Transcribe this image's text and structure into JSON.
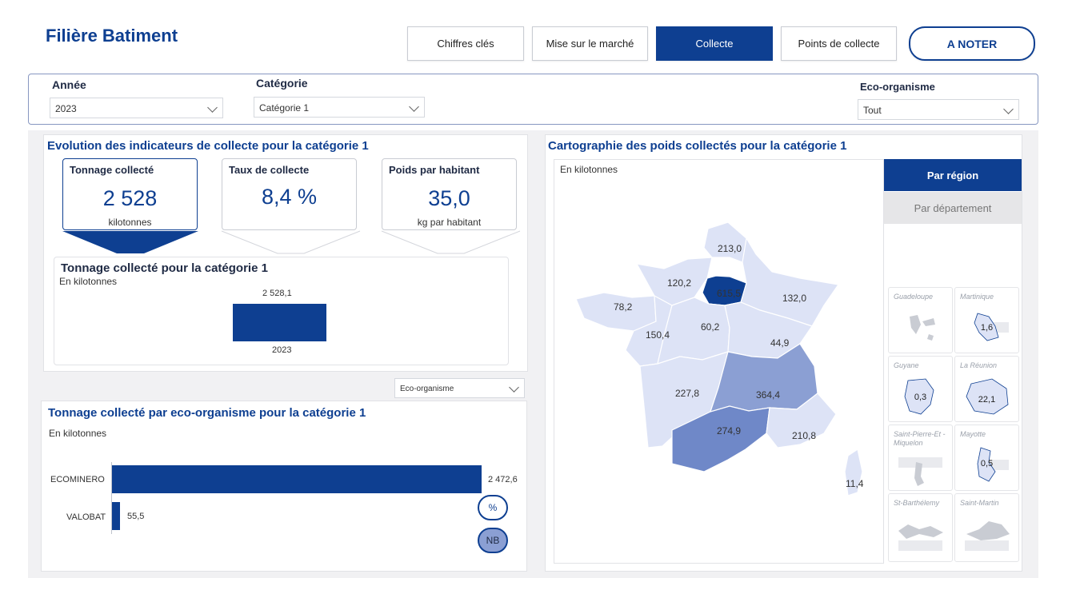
{
  "header": {
    "title": "Filière Batiment"
  },
  "nav": {
    "chiffres": "Chiffres clés",
    "marche": "Mise sur le marché",
    "collecte": "Collecte",
    "points": "Points de collecte",
    "noter": "A NOTER"
  },
  "filters": {
    "annee": {
      "label": "Année",
      "value": "2023"
    },
    "categorie": {
      "label": "Catégorie",
      "value": "Catégorie 1"
    },
    "eco": {
      "label": "Eco-organisme",
      "value": "Tout"
    }
  },
  "evolution": {
    "title": "Evolution des indicateurs de collecte pour la catégorie 1",
    "kpis": [
      {
        "title": "Tonnage collecté",
        "value": "2 528",
        "unit": "kilotonnes"
      },
      {
        "title": "Taux de collecte",
        "value": "8,4 %",
        "unit": ""
      },
      {
        "title": "Poids par habitant",
        "value": "35,0",
        "unit": "kg par habitant"
      }
    ]
  },
  "tonnage_chart": {
    "title": "Tonnage collecté pour la catégorie 1",
    "subtitle": "En kilotonnes",
    "value_label": "2 528,1",
    "category": "2023"
  },
  "eco_filter": {
    "value": "Eco-organisme"
  },
  "eco_chart": {
    "title": "Tonnage collecté par eco-organisme pour la catégorie 1",
    "subtitle": "En kilotonnes",
    "bars": [
      {
        "name": "ECOMINERO",
        "label": "2 472,6"
      },
      {
        "name": "VALOBAT",
        "label": "55,5"
      }
    ],
    "toggle_pct": "%",
    "toggle_nb": "NB"
  },
  "map": {
    "title": "Cartographie des poids collectés pour la catégorie 1",
    "subtitle": "En kilotonnes",
    "toggle_region": "Par région",
    "toggle_dept": "Par département",
    "regions": {
      "hdf": "213,0",
      "normandie": "120,2",
      "idf": "615,5",
      "grandest": "132,0",
      "bretagne": "78,2",
      "pdl": "150,4",
      "cvl": "60,2",
      "bfc": "44,9",
      "naq": "227,8",
      "ara": "364,4",
      "occ": "274,9",
      "paca": "210,8",
      "corse": "11,4"
    },
    "dom": [
      {
        "name": "Guadeloupe",
        "value": ""
      },
      {
        "name": "Martinique",
        "value": "1,6"
      },
      {
        "name": "Guyane",
        "value": "0,3"
      },
      {
        "name": "La Réunion",
        "value": "22,1"
      },
      {
        "name": "Saint-Pierre-Et -Miquelon",
        "value": ""
      },
      {
        "name": "Mayotte",
        "value": "0,5"
      },
      {
        "name": "St-Barthélemy",
        "value": ""
      },
      {
        "name": "Saint-Martin",
        "value": ""
      }
    ]
  },
  "colors": {
    "brand": "#0e3f91",
    "light": "#dde3f6",
    "mid": "#8b9fd3",
    "dark": "#6f88c8"
  },
  "chart_data": [
    {
      "type": "bar",
      "title": "Tonnage collecté pour la catégorie 1",
      "categories": [
        "2023"
      ],
      "values": [
        2528.1
      ]
    },
    {
      "type": "bar",
      "title": "Tonnage collecté par eco-organisme pour la catégorie 1",
      "categories": [
        "ECOMINERO",
        "VALOBAT"
      ],
      "values": [
        2472.6,
        55.5
      ]
    }
  ]
}
